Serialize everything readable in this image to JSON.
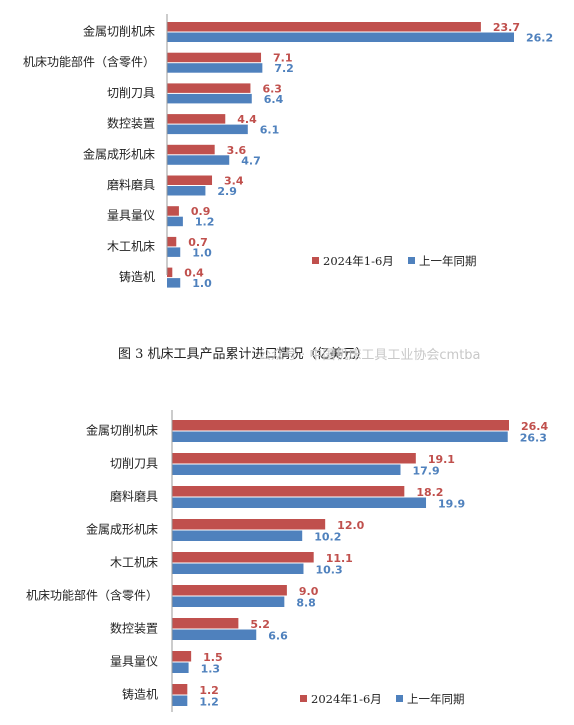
{
  "colors": {
    "current": "#c0504d",
    "previous": "#4f81bd",
    "axis": "#9a9a9a"
  },
  "caption": "图 3 机床工具产品累计进口情况（亿美元）",
  "watermark": "公众号 · 中国机床工具工业协会cmtba",
  "chart_data": [
    {
      "type": "bar",
      "orientation": "horizontal",
      "categories": [
        "金属切削机床",
        "机床功能部件（含零件）",
        "切削刀具",
        "数控装置",
        "金属成形机床",
        "磨料磨具",
        "量具量仪",
        "木工机床",
        "铸造机"
      ],
      "series": [
        {
          "name": "2024年1-6月",
          "values": [
            23.7,
            7.1,
            6.3,
            4.4,
            3.6,
            3.4,
            0.9,
            0.7,
            0.4
          ]
        },
        {
          "name": "上一年同期",
          "values": [
            26.2,
            7.2,
            6.4,
            6.1,
            4.7,
            2.9,
            1.2,
            1.0,
            1.0
          ]
        }
      ],
      "xlim": [
        0,
        26.2
      ],
      "legend": "bottom-right"
    },
    {
      "type": "bar",
      "orientation": "horizontal",
      "categories": [
        "金属切削机床",
        "切削刀具",
        "磨料磨具",
        "金属成形机床",
        "木工机床",
        "机床功能部件（含零件）",
        "数控装置",
        "量具量仪",
        "铸造机"
      ],
      "series": [
        {
          "name": "2024年1-6月",
          "values": [
            26.4,
            19.1,
            18.2,
            12.0,
            11.1,
            9.0,
            5.2,
            1.5,
            1.2
          ]
        },
        {
          "name": "上一年同期",
          "values": [
            26.3,
            17.9,
            19.9,
            10.2,
            10.3,
            8.8,
            6.6,
            1.3,
            1.2
          ]
        }
      ],
      "xlim": [
        0,
        26.4
      ],
      "legend": "bottom-right"
    }
  ]
}
